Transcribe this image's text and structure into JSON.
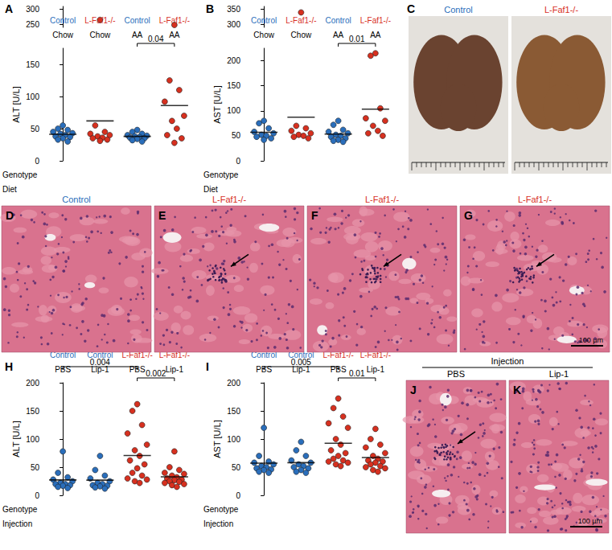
{
  "chart_data": [
    {
      "panel": "A",
      "type": "scatter",
      "marker": "circle",
      "grid": false,
      "y_label": "ALT [U/L]",
      "category_title": "Genotype",
      "categories": [
        "Control",
        "L-Faf1-/-",
        "Control",
        "L-Faf1-/-"
      ],
      "subcategory_title": "Diet",
      "subcategories": [
        "Chow",
        "Chow",
        "AA",
        "AA"
      ],
      "colors": [
        "#2a6ebb",
        "#d7301f",
        "#2a6ebb",
        "#d7301f"
      ],
      "values": [
        [
          55,
          50,
          48,
          45,
          43,
          42,
          40,
          38,
          37,
          35,
          33,
          30
        ],
        [
          265,
          55,
          45,
          42,
          40,
          38,
          36,
          35,
          33,
          31
        ],
        [
          48,
          45,
          42,
          40,
          39,
          38,
          37,
          36,
          35,
          34,
          32,
          30
        ],
        [
          248,
          125,
          110,
          92,
          70,
          62,
          50,
          40,
          35,
          28
        ]
      ],
      "means": [
        41.3,
        62.0,
        38.0,
        86.0
      ],
      "ylim": [
        0,
        175
      ],
      "yticks": [
        0,
        50,
        100,
        150
      ],
      "upper_ylim": [
        240,
        310
      ],
      "upper_yticks": [
        250,
        300
      ],
      "comparisons": [
        {
          "groups": [
            2,
            3
          ],
          "label": "0.04"
        }
      ]
    },
    {
      "panel": "B",
      "type": "scatter",
      "marker": "circle",
      "grid": false,
      "y_label": "AST [U/L]",
      "category_title": "Genotype",
      "categories": [
        "Control",
        "L-Faf1-/-",
        "Control",
        "L-Faf1-/-"
      ],
      "subcategory_title": "Diet",
      "subcategories": [
        "Chow",
        "Chow",
        "AA",
        "AA"
      ],
      "colors": [
        "#2a6ebb",
        "#d7301f",
        "#2a6ebb",
        "#d7301f"
      ],
      "values": [
        [
          80,
          75,
          65,
          58,
          55,
          52,
          50,
          48,
          45,
          42
        ],
        [
          340,
          70,
          65,
          60,
          55,
          52,
          50,
          48,
          45
        ],
        [
          80,
          72,
          62,
          58,
          55,
          52,
          50,
          48,
          45,
          42,
          40,
          38
        ],
        [
          215,
          210,
          105,
          85,
          80,
          70,
          60,
          55,
          50
        ]
      ],
      "means": [
        57.0,
        87.2,
        53.5,
        103.3
      ],
      "ylim": [
        0,
        225
      ],
      "yticks": [
        0,
        50,
        100,
        150,
        200
      ],
      "upper_ylim": [
        290,
        360
      ],
      "upper_yticks": [
        300,
        350
      ],
      "comparisons": [
        {
          "groups": [
            2,
            3
          ],
          "label": "0.01"
        }
      ]
    },
    {
      "panel": "H",
      "type": "scatter",
      "marker": "circle",
      "grid": false,
      "y_label": "ALT [U/L]",
      "category_title": "Genotype",
      "categories": [
        "Control",
        "Control",
        "L-Faf1-/-",
        "L-Faf1-/-"
      ],
      "subcategory_title": "Injection",
      "subcategories": [
        "PBS",
        "Lip-1",
        "PBS",
        "Lip-1"
      ],
      "colors": [
        "#2a6ebb",
        "#2a6ebb",
        "#d7301f",
        "#d7301f"
      ],
      "values": [
        [
          78,
          40,
          32,
          28,
          25,
          22,
          20,
          20,
          18,
          17,
          15,
          13
        ],
        [
          70,
          45,
          35,
          30,
          25,
          22,
          20,
          18,
          17,
          16,
          14,
          12
        ],
        [
          162,
          150,
          125,
          110,
          90,
          80,
          70,
          62,
          55,
          48,
          40,
          35,
          30,
          28,
          25,
          22
        ],
        [
          78,
          50,
          45,
          40,
          38,
          35,
          32,
          30,
          28,
          27,
          25,
          24,
          22,
          20,
          18,
          15
        ]
      ],
      "means": [
        27.3,
        27.0,
        70.8,
        32.9
      ],
      "ylim": [
        0,
        200
      ],
      "yticks": [
        0,
        50,
        100,
        150,
        200
      ],
      "comparisons": [
        {
          "groups": [
            0,
            2
          ],
          "label": "0.004"
        },
        {
          "groups": [
            2,
            3
          ],
          "label": "0.002"
        }
      ]
    },
    {
      "panel": "I",
      "type": "scatter",
      "marker": "circle",
      "grid": false,
      "y_label": "AST [U/L]",
      "category_title": "Genotype",
      "categories": [
        "Control",
        "Control",
        "L-Faf1-/-",
        "L-Faf1-/-"
      ],
      "subcategory_title": "Injection",
      "subcategories": [
        "PBS",
        "Lip-1",
        "PBS",
        "Lip-1"
      ],
      "colors": [
        "#2a6ebb",
        "#2a6ebb",
        "#d7301f",
        "#d7301f"
      ],
      "values": [
        [
          120,
          70,
          60,
          58,
          55,
          52,
          50,
          48,
          46,
          45,
          42,
          40
        ],
        [
          95,
          80,
          70,
          62,
          58,
          55,
          52,
          50,
          48,
          45,
          42,
          40
        ],
        [
          172,
          155,
          140,
          128,
          120,
          100,
          90,
          80,
          75,
          70,
          65,
          62,
          60,
          58,
          55,
          52
        ],
        [
          118,
          100,
          90,
          85,
          75,
          70,
          65,
          62,
          60,
          58,
          55,
          52,
          50,
          48,
          45,
          42
        ]
      ],
      "means": [
        57.2,
        58.1,
        92.6,
        67.2
      ],
      "ylim": [
        0,
        200
      ],
      "yticks": [
        0,
        50,
        100,
        150,
        200
      ],
      "comparisons": [
        {
          "groups": [
            0,
            2
          ],
          "label": "0.005"
        },
        {
          "groups": [
            2,
            3
          ],
          "label": "0.01"
        }
      ]
    }
  ],
  "image_groups": [
    {
      "type": "photo",
      "panels": [
        "C"
      ],
      "titles": [
        "Control",
        "L-Faf1-/-"
      ],
      "title_colors": [
        "#2a6ebb",
        "#d7301f"
      ]
    },
    {
      "type": "histology",
      "panels": [
        "D",
        "E",
        "F",
        "G"
      ],
      "titles": [
        "Control",
        "L-Faf1-/-",
        "L-Faf1-/-",
        "L-Faf1-/-"
      ],
      "title_colors": [
        "#2a6ebb",
        "#d7301f",
        "#d7301f",
        "#d7301f"
      ],
      "arrows": [
        false,
        true,
        true,
        true
      ],
      "scale_bar": "100 µm"
    },
    {
      "type": "histology",
      "header": "Injection",
      "panels": [
        "J",
        "K"
      ],
      "titles": [
        "PBS",
        "Lip-1"
      ],
      "title_colors": [
        "#000000",
        "#000000"
      ],
      "arrows": [
        true,
        false
      ],
      "scale_bar": "100 µm"
    }
  ]
}
